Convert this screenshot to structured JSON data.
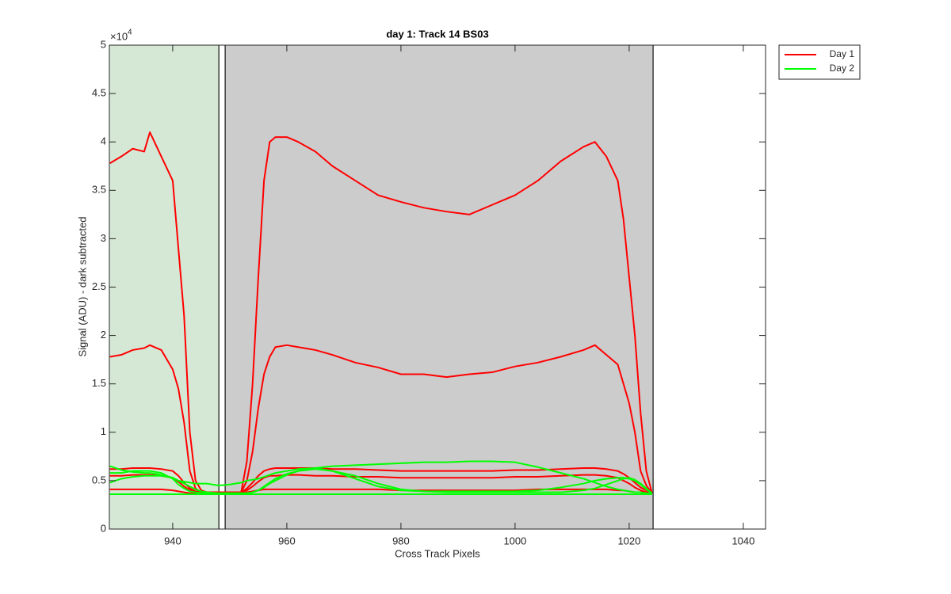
{
  "chart_data": {
    "type": "line",
    "title": "day 1: Track 14  BS03",
    "x_label": "Cross Track Pixels",
    "y_label": "Signal (ADU) - dark subtracted",
    "y_multiplier": "×10",
    "y_exponent": "4",
    "xlim": [
      928.9,
      1043.9
    ],
    "ylim": [
      0,
      5
    ],
    "xticks": [
      940,
      960,
      980,
      1000,
      1020,
      1040
    ],
    "yticks": [
      0,
      0.5,
      1,
      1.5,
      2,
      2.5,
      3,
      3.5,
      4,
      4.5,
      5
    ],
    "legend": "outside-top-right",
    "regions": [
      {
        "x": [
          928.9,
          948.1
        ],
        "color": "#d5e8d6"
      },
      {
        "x": [
          948.1,
          949.2
        ],
        "color": "#ffffff"
      },
      {
        "x": [
          949.2,
          1024.2
        ],
        "color": "#cccccc"
      },
      {
        "x": [
          1024.2,
          1043.9
        ],
        "color": "#ffffff"
      }
    ],
    "x": [
      929,
      931,
      933,
      935,
      936,
      938,
      940,
      941,
      942,
      943,
      944,
      945,
      946,
      948,
      950,
      952,
      953,
      954,
      955,
      956,
      957,
      958,
      960,
      962,
      965,
      968,
      972,
      976,
      980,
      984,
      988,
      992,
      996,
      1000,
      1004,
      1008,
      1012,
      1014,
      1016,
      1018,
      1019,
      1020,
      1021,
      1022,
      1023,
      1024
    ],
    "series": [
      {
        "name": "Day 1",
        "color": "#ff0000",
        "lines": [
          [
            3.78,
            3.85,
            3.93,
            3.9,
            4.1,
            3.85,
            3.6,
            2.9,
            2.2,
            1.0,
            0.5,
            0.4,
            0.38,
            0.38,
            0.38,
            0.38,
            0.7,
            1.5,
            2.6,
            3.6,
            4.0,
            4.05,
            4.05,
            4.0,
            3.9,
            3.75,
            3.6,
            3.45,
            3.38,
            3.32,
            3.28,
            3.25,
            3.35,
            3.45,
            3.6,
            3.8,
            3.95,
            4.0,
            3.85,
            3.6,
            3.2,
            2.6,
            2.0,
            1.2,
            0.6,
            0.37
          ],
          [
            1.78,
            1.8,
            1.85,
            1.87,
            1.9,
            1.85,
            1.65,
            1.45,
            1.1,
            0.6,
            0.42,
            0.38,
            0.38,
            0.38,
            0.38,
            0.38,
            0.5,
            0.8,
            1.25,
            1.6,
            1.78,
            1.88,
            1.9,
            1.88,
            1.85,
            1.8,
            1.72,
            1.67,
            1.6,
            1.6,
            1.57,
            1.6,
            1.62,
            1.68,
            1.72,
            1.78,
            1.85,
            1.9,
            1.8,
            1.7,
            1.5,
            1.3,
            1.0,
            0.6,
            0.45,
            0.37
          ],
          [
            0.62,
            0.62,
            0.63,
            0.63,
            0.63,
            0.62,
            0.6,
            0.55,
            0.48,
            0.42,
            0.39,
            0.38,
            0.38,
            0.38,
            0.38,
            0.38,
            0.42,
            0.48,
            0.55,
            0.6,
            0.62,
            0.63,
            0.63,
            0.63,
            0.63,
            0.62,
            0.62,
            0.61,
            0.6,
            0.6,
            0.6,
            0.6,
            0.6,
            0.61,
            0.61,
            0.62,
            0.63,
            0.63,
            0.62,
            0.6,
            0.57,
            0.53,
            0.48,
            0.43,
            0.4,
            0.37
          ],
          [
            0.55,
            0.55,
            0.56,
            0.56,
            0.56,
            0.55,
            0.53,
            0.49,
            0.44,
            0.4,
            0.38,
            0.38,
            0.38,
            0.38,
            0.38,
            0.38,
            0.4,
            0.44,
            0.49,
            0.53,
            0.55,
            0.55,
            0.56,
            0.56,
            0.55,
            0.55,
            0.54,
            0.54,
            0.53,
            0.53,
            0.53,
            0.53,
            0.53,
            0.54,
            0.54,
            0.55,
            0.56,
            0.56,
            0.55,
            0.53,
            0.5,
            0.47,
            0.43,
            0.4,
            0.38,
            0.37
          ],
          [
            0.41,
            0.41,
            0.41,
            0.41,
            0.41,
            0.41,
            0.4,
            0.39,
            0.38,
            0.37,
            0.37,
            0.37,
            0.37,
            0.37,
            0.37,
            0.37,
            0.38,
            0.39,
            0.4,
            0.41,
            0.41,
            0.41,
            0.41,
            0.41,
            0.41,
            0.41,
            0.41,
            0.41,
            0.4,
            0.4,
            0.4,
            0.4,
            0.4,
            0.4,
            0.41,
            0.41,
            0.41,
            0.41,
            0.41,
            0.4,
            0.4,
            0.39,
            0.38,
            0.38,
            0.37,
            0.37
          ]
        ]
      },
      {
        "name": "Day 2",
        "color": "#00ff00",
        "lines": [
          [
            0.65,
            0.61,
            0.59,
            0.58,
            0.58,
            0.56,
            0.53,
            0.5,
            0.47,
            0.44,
            0.41,
            0.39,
            0.38,
            0.37,
            0.37,
            0.37,
            0.37,
            0.38,
            0.4,
            0.43,
            0.47,
            0.5,
            0.56,
            0.6,
            0.63,
            0.65,
            0.66,
            0.67,
            0.68,
            0.69,
            0.69,
            0.7,
            0.7,
            0.69,
            0.64,
            0.58,
            0.52,
            0.48,
            0.44,
            0.41,
            0.4,
            0.39,
            0.38,
            0.38,
            0.37,
            0.37
          ],
          [
            0.48,
            0.52,
            0.54,
            0.55,
            0.55,
            0.55,
            0.53,
            0.5,
            0.49,
            0.48,
            0.47,
            0.47,
            0.47,
            0.45,
            0.46,
            0.48,
            0.5,
            0.51,
            0.52,
            0.54,
            0.56,
            0.58,
            0.6,
            0.62,
            0.63,
            0.6,
            0.52,
            0.44,
            0.4,
            0.39,
            0.39,
            0.39,
            0.39,
            0.39,
            0.4,
            0.43,
            0.47,
            0.5,
            0.52,
            0.53,
            0.53,
            0.52,
            0.5,
            0.46,
            0.41,
            0.37
          ],
          [
            0.58,
            0.58,
            0.6,
            0.6,
            0.6,
            0.58,
            0.52,
            0.46,
            0.42,
            0.39,
            0.38,
            0.37,
            0.37,
            0.37,
            0.37,
            0.37,
            0.37,
            0.38,
            0.4,
            0.44,
            0.48,
            0.52,
            0.57,
            0.6,
            0.62,
            0.6,
            0.55,
            0.47,
            0.41,
            0.39,
            0.38,
            0.38,
            0.38,
            0.38,
            0.38,
            0.38,
            0.4,
            0.42,
            0.46,
            0.5,
            0.52,
            0.53,
            0.51,
            0.47,
            0.42,
            0.37
          ],
          [
            0.36,
            0.36,
            0.36,
            0.36,
            0.36,
            0.36,
            0.36,
            0.36,
            0.36,
            0.36,
            0.36,
            0.36,
            0.36,
            0.36,
            0.36,
            0.36,
            0.36,
            0.36,
            0.36,
            0.36,
            0.36,
            0.36,
            0.36,
            0.36,
            0.36,
            0.36,
            0.36,
            0.36,
            0.36,
            0.36,
            0.36,
            0.36,
            0.36,
            0.36,
            0.36,
            0.36,
            0.36,
            0.36,
            0.36,
            0.36,
            0.36,
            0.36,
            0.36,
            0.36,
            0.36,
            0.36
          ]
        ]
      }
    ]
  }
}
